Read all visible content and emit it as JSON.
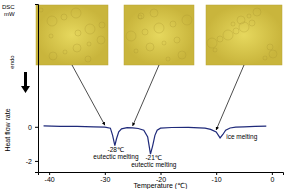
{
  "chart_data": {
    "type": "line",
    "y_title": "DSC",
    "y_unit": "mW",
    "y_label": "Heat flow rate",
    "endo_label": "endo",
    "x_label": "Temperature (℃)",
    "x": [
      -41,
      -38,
      -35,
      -32,
      -30,
      -29,
      -28.6,
      -28.2,
      -27.9,
      -27.5,
      -27,
      -26,
      -25,
      -24,
      -23,
      -22.3,
      -21.8,
      -21.4,
      -21,
      -20.6,
      -20,
      -18,
      -15,
      -12,
      -11,
      -10,
      -9.3,
      -8.8,
      -8.3,
      -7.5,
      -6.5,
      -5,
      -3,
      -1
    ],
    "series": [
      {
        "color": "#1f2a7a",
        "values": [
          0.05,
          0.03,
          0.02,
          0.0,
          -0.02,
          -0.08,
          -0.5,
          -1.1,
          -0.7,
          -0.3,
          -0.12,
          -0.05,
          -0.06,
          -0.1,
          -0.2,
          -0.6,
          -1.6,
          -1.1,
          -0.5,
          -0.2,
          -0.08,
          -0.04,
          -0.03,
          -0.08,
          -0.15,
          -0.3,
          -0.65,
          -0.45,
          -0.2,
          -0.07,
          -0.02,
          0.0,
          0.02,
          0.04
        ]
      }
    ],
    "xlim": [
      -42,
      2
    ],
    "xticks": [
      -40,
      -30,
      -20,
      -10,
      0
    ],
    "ylim": [
      -2.65,
      7.2
    ],
    "yticks": [
      -2,
      0
    ],
    "annotations": [
      {
        "text": "-28℃",
        "x": -28,
        "y": -1.5
      },
      {
        "text": "eutectic melting",
        "x": -28,
        "y": -1.88
      },
      {
        "text": "-21℃",
        "x": -21.2,
        "y": -1.95
      },
      {
        "text": "eutectic melting",
        "x": -21.2,
        "y": -2.33
      },
      {
        "text": "ice melting",
        "x": -8.2,
        "y": -0.72
      }
    ],
    "insets": [
      {
        "x": -30,
        "y": -0.02
      },
      {
        "x": -25,
        "y": -0.06
      },
      {
        "x": -10,
        "y": -0.3
      }
    ]
  }
}
